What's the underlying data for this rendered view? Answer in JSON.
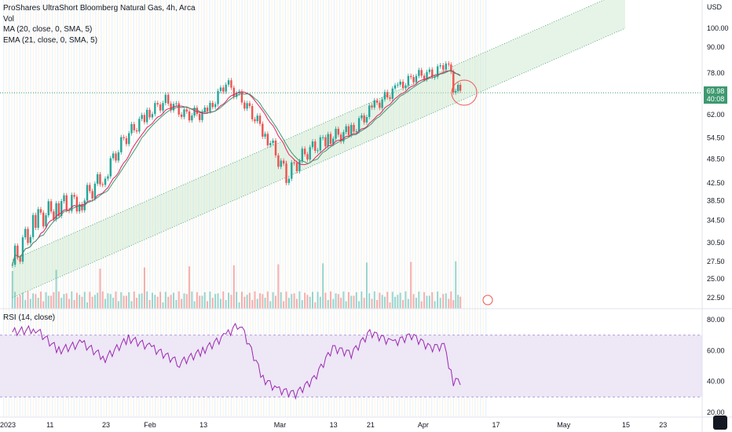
{
  "legend": {
    "title": "ProShares UltraShort Bloomberg Natural Gas, 4h, Arca",
    "vol": "Vol",
    "ma": "MA (20, close, 0, SMA, 5)",
    "ema": "EMA (21, close, 0, SMA, 5)",
    "rsi": "RSI (14, close)"
  },
  "colors": {
    "up": "#26a69a",
    "down": "#ef5350",
    "ma": "#e91e63",
    "ema": "#3d9970",
    "channel": "#c8e6c9",
    "rsi_line": "#9c27b0",
    "rsi_band": "#ede7f6",
    "vstripe_orange": "#fff3e0",
    "vstripe_blue": "#e3f2fd"
  },
  "price_axis": {
    "unit": "USD",
    "ticks": [
      "100.00",
      "90.00",
      "78.00",
      "70.00",
      "62.00",
      "54.50",
      "48.50",
      "42.50",
      "38.50",
      "34.50",
      "30.50",
      "27.50",
      "25.00",
      "22.50"
    ],
    "last_price": "69.98",
    "last_time": "40:08"
  },
  "rsi_axis": {
    "ticks": [
      "80.00",
      "60.00",
      "40.00",
      "20.00"
    ]
  },
  "time_axis": {
    "ticks": [
      "2023",
      "11",
      "23",
      "Feb",
      "13",
      "Mar",
      "13",
      "21",
      "Apr",
      "17",
      "May",
      "15",
      "23"
    ]
  },
  "chart_data": [
    {
      "type": "candlestick",
      "title": "ProShares UltraShort Bloomberg Natural Gas, 4h, Arca",
      "y_unit": "USD",
      "x_range": [
        "2023-01-01",
        "2023-05-25"
      ],
      "log_scale": true,
      "y_range_visible": [
        22.5,
        100.0
      ],
      "close_path": [
        {
          "x": "2023-01-03",
          "y": 27.0
        },
        {
          "x": "2023-01-08",
          "y": 34.5
        },
        {
          "x": "2023-01-13",
          "y": 37.5
        },
        {
          "x": "2023-01-18",
          "y": 38.5
        },
        {
          "x": "2023-01-23",
          "y": 44.5
        },
        {
          "x": "2023-01-27",
          "y": 54.0
        },
        {
          "x": "2023-02-01",
          "y": 62.0
        },
        {
          "x": "2023-02-05",
          "y": 67.0
        },
        {
          "x": "2023-02-09",
          "y": 62.0
        },
        {
          "x": "2023-02-14",
          "y": 62.5
        },
        {
          "x": "2023-02-18",
          "y": 74.0
        },
        {
          "x": "2023-02-22",
          "y": 66.0
        },
        {
          "x": "2023-02-27",
          "y": 54.5
        },
        {
          "x": "2023-03-03",
          "y": 44.0
        },
        {
          "x": "2023-03-07",
          "y": 50.0
        },
        {
          "x": "2023-03-12",
          "y": 54.5
        },
        {
          "x": "2023-03-17",
          "y": 56.5
        },
        {
          "x": "2023-03-22",
          "y": 65.0
        },
        {
          "x": "2023-03-27",
          "y": 72.0
        },
        {
          "x": "2023-03-31",
          "y": 77.0
        },
        {
          "x": "2023-04-04",
          "y": 78.0
        },
        {
          "x": "2023-04-07",
          "y": 84.0
        },
        {
          "x": "2023-04-08",
          "y": 72.0
        },
        {
          "x": "2023-04-10",
          "y": 69.98
        }
      ],
      "price_ext": {
        "high": 85.0,
        "low": 42.5
      },
      "trend_channel": {
        "lower_start": {
          "x": "2023-01-03",
          "y": 22.5
        },
        "upper_end": {
          "x": "2023-05-15",
          "y": 100.0
        }
      },
      "annotation": "ellipse near last candle"
    },
    {
      "type": "bar",
      "name": "Vol",
      "description_values": "relative volume, larger spikes around 2023-01-10, 2023-02-01, 2023-02-05 and 2023-03-01"
    },
    {
      "type": "line",
      "name": "RSI (14, close)",
      "ylim": [
        20,
        80
      ],
      "band": [
        30,
        70
      ],
      "points": [
        {
          "x": "2023-01-03",
          "y": 72
        },
        {
          "x": "2023-01-08",
          "y": 74
        },
        {
          "x": "2023-01-13",
          "y": 60
        },
        {
          "x": "2023-01-18",
          "y": 65
        },
        {
          "x": "2023-01-23",
          "y": 55
        },
        {
          "x": "2023-01-28",
          "y": 68
        },
        {
          "x": "2023-02-02",
          "y": 62
        },
        {
          "x": "2023-02-08",
          "y": 52
        },
        {
          "x": "2023-02-13",
          "y": 60
        },
        {
          "x": "2023-02-18",
          "y": 70
        },
        {
          "x": "2023-02-21",
          "y": 78
        },
        {
          "x": "2023-02-26",
          "y": 42
        },
        {
          "x": "2023-03-01",
          "y": 35
        },
        {
          "x": "2023-03-05",
          "y": 32
        },
        {
          "x": "2023-03-09",
          "y": 42
        },
        {
          "x": "2023-03-13",
          "y": 62
        },
        {
          "x": "2023-03-17",
          "y": 58
        },
        {
          "x": "2023-03-21",
          "y": 72
        },
        {
          "x": "2023-03-26",
          "y": 65
        },
        {
          "x": "2023-03-30",
          "y": 70
        },
        {
          "x": "2023-04-03",
          "y": 62
        },
        {
          "x": "2023-04-06",
          "y": 63
        },
        {
          "x": "2023-04-08",
          "y": 40
        },
        {
          "x": "2023-04-10",
          "y": 41
        }
      ]
    }
  ]
}
